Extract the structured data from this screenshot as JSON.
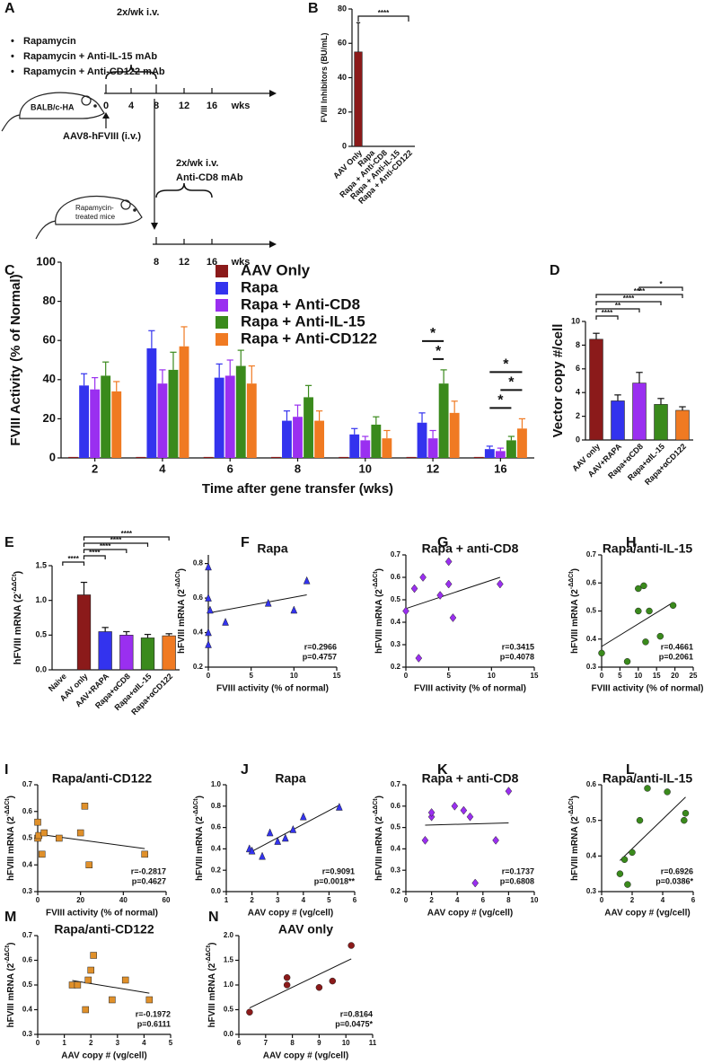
{
  "diagram": {
    "panel": "A",
    "schedule_top": "2x/wk i.v.",
    "treatments": [
      "Rapamycin",
      "Rapamycin + Anti-IL-15 mAb",
      "Rapamycin + Anti-CD122 mAb"
    ],
    "mouse_1": "BALB/c-HA",
    "timeline_1": [
      "0",
      "4",
      "8",
      "12",
      "16",
      "wks"
    ],
    "injection": "AAV8-hFVIII (i.v.)",
    "mouse_2": [
      "Rapamycin-",
      "treated mice"
    ],
    "schedule_bottom": [
      "2x/wk i.v.",
      "Anti-CD8 mAb"
    ],
    "timeline_2": [
      "8",
      "12",
      "16",
      "wks"
    ]
  },
  "chart_data": [
    {
      "panel": "B",
      "type": "bar",
      "y_label": "FVIII Inhibitors (BU/mL)",
      "categories": [
        "AAV Only",
        "Rapa",
        "Rapa + Anti-CD8",
        "Rapa + Anti-IL-15",
        "Rapa + Anti-CD122"
      ],
      "values": [
        55,
        0,
        0,
        0,
        0
      ],
      "errors": [
        17,
        0,
        0,
        0,
        0
      ],
      "colors": [
        "#8b1a1a",
        "#3333ee",
        "#9a2ff0",
        "#3a8a1c",
        "#f07a22"
      ],
      "ylim": [
        0,
        80
      ],
      "yticks": [
        0,
        20,
        40,
        60,
        80
      ],
      "comparisons": [
        {
          "between": [
            "AAV Only",
            "Rapa + Anti-CD122"
          ],
          "label": "****"
        }
      ]
    },
    {
      "panel": "C",
      "type": "grouped_bar",
      "y_label": "FVIII Activity (% of Normal)",
      "x_label": "Time after gene transfer (wks)",
      "categories": [
        "2",
        "4",
        "6",
        "8",
        "10",
        "12",
        "16"
      ],
      "ylim": [
        0,
        100
      ],
      "yticks": [
        0,
        20,
        40,
        60,
        80,
        100
      ],
      "series": [
        {
          "name": "AAV Only",
          "color": "#8b1a1a",
          "values": [
            0.5,
            0.5,
            0.5,
            0.5,
            0.5,
            0.5,
            0.5
          ],
          "errors": [
            0,
            0,
            0,
            0,
            0,
            0,
            0
          ]
        },
        {
          "name": "Rapa",
          "color": "#3333ee",
          "values": [
            37,
            56,
            41,
            19,
            12,
            18,
            4.5
          ],
          "errors": [
            6,
            9,
            7,
            5,
            3,
            5,
            1.5
          ]
        },
        {
          "name": "Rapa + Anti-CD8",
          "color": "#9a2ff0",
          "values": [
            35,
            38,
            42,
            21,
            9,
            10,
            3.5
          ],
          "errors": [
            6,
            7,
            8,
            6,
            2,
            4,
            1.5
          ]
        },
        {
          "name": "Rapa + Anti-IL-15",
          "color": "#3a8a1c",
          "values": [
            42,
            45,
            47,
            31,
            17,
            38,
            9
          ],
          "errors": [
            7,
            9,
            8,
            6,
            4,
            7,
            2
          ]
        },
        {
          "name": "Rapa + Anti-CD122",
          "color": "#f07a22",
          "values": [
            34,
            57,
            38,
            19,
            10,
            23,
            15
          ],
          "errors": [
            5,
            10,
            9,
            5,
            4,
            6,
            5
          ]
        }
      ],
      "comparisons": [
        {
          "category": "12",
          "between": [
            "Rapa + Anti-CD8",
            "Rapa + Anti-IL-15"
          ],
          "label": "*"
        },
        {
          "category": "12",
          "between": [
            "Rapa",
            "Rapa + Anti-IL-15"
          ],
          "label": "*"
        },
        {
          "category": "16",
          "between": [
            "Rapa",
            "Rapa + Anti-IL-15"
          ],
          "label": "*"
        },
        {
          "category": "16",
          "between": [
            "Rapa + Anti-CD8",
            "Rapa + Anti-CD122"
          ],
          "label": "*"
        },
        {
          "category": "16",
          "between": [
            "Rapa",
            "Rapa + Anti-CD122"
          ],
          "label": "*"
        }
      ]
    },
    {
      "panel": "D",
      "type": "bar",
      "y_label": "Vector copy #/cell",
      "categories": [
        "AAV only",
        "AAV+RAPA",
        "Rapa+αCD8",
        "Rapa+αIL-15",
        "Rapa+αCD122"
      ],
      "values": [
        8.5,
        3.3,
        4.8,
        3.0,
        2.5
      ],
      "errors": [
        0.5,
        0.5,
        0.9,
        0.5,
        0.3
      ],
      "colors": [
        "#8b1a1a",
        "#3333ee",
        "#9a2ff0",
        "#3a8a1c",
        "#f07a22"
      ],
      "ylim": [
        0,
        10
      ],
      "yticks": [
        0,
        2,
        4,
        6,
        8,
        10
      ],
      "comparisons": [
        {
          "between": [
            "AAV only",
            "AAV+RAPA"
          ],
          "label": "****"
        },
        {
          "between": [
            "AAV only",
            "Rapa+αCD8"
          ],
          "label": "**"
        },
        {
          "between": [
            "AAV only",
            "Rapa+αIL-15"
          ],
          "label": "****"
        },
        {
          "between": [
            "AAV only",
            "Rapa+αCD122"
          ],
          "label": "****"
        },
        {
          "between": [
            "Rapa+αCD8",
            "Rapa+αCD122"
          ],
          "label": "*"
        }
      ]
    },
    {
      "panel": "E",
      "type": "bar",
      "y_label": "hFVIII mRNA (2",
      "y_label_sup": "-ΔΔCt",
      "y_label_end": ")",
      "categories": [
        "Naive",
        "AAV only",
        "AAV+RAPA",
        "Rapa+αCD8",
        "Rapa+αIL-15",
        "Rapa+αCD122"
      ],
      "values": [
        0,
        1.08,
        0.55,
        0.5,
        0.46,
        0.49
      ],
      "errors": [
        0,
        0.18,
        0.06,
        0.05,
        0.05,
        0.03
      ],
      "colors": [
        "#888888",
        "#8b1a1a",
        "#3333ee",
        "#9a2ff0",
        "#3a8a1c",
        "#f07a22"
      ],
      "ylim": [
        0,
        1.5
      ],
      "yticks": [
        {
          "value": 0,
          "label": "0.0"
        },
        0.5,
        {
          "value": 1,
          "label": "1.0"
        },
        1.5
      ],
      "comparisons": [
        {
          "between": [
            "Naive",
            "AAV only"
          ],
          "label": "****"
        },
        {
          "between": [
            "AAV only",
            "AAV+RAPA"
          ],
          "label": "****"
        },
        {
          "between": [
            "AAV only",
            "Rapa+αCD8"
          ],
          "label": "****"
        },
        {
          "between": [
            "AAV only",
            "Rapa+αIL-15"
          ],
          "label": "****"
        },
        {
          "between": [
            "AAV only",
            "Rapa+αCD122"
          ],
          "label": "****"
        }
      ]
    },
    {
      "panel": "F",
      "type": "scatter",
      "title": "Rapa",
      "x_label": "FVIII activity (% of normal)",
      "y_label": "hFVIII mRNA (2",
      "y_label_sup": "-ΔΔCt",
      "y_label_end": ")",
      "marker": "triangle",
      "color": "#3333ee",
      "x": [
        0,
        0,
        0,
        0,
        0.2,
        2,
        7,
        10,
        11.5
      ],
      "y": [
        0.78,
        0.6,
        0.4,
        0.33,
        0.53,
        0.46,
        0.57,
        0.53,
        0.7
      ],
      "xlim": [
        0,
        15
      ],
      "xticks": [
        0,
        5,
        10,
        15
      ],
      "ylim": [
        0.2,
        0.85
      ],
      "yticks": [
        0.2,
        0.4,
        0.6,
        0.8
      ],
      "stats": [
        "r=0.2966",
        "p=0.4757"
      ]
    },
    {
      "panel": "G",
      "type": "scatter",
      "title": "Rapa + anti-CD8",
      "x_label": "FVIII activity (% of normal)",
      "y_label": "hFVIII mRNA (2",
      "y_label_sup": "-ΔΔCt",
      "y_label_end": ")",
      "marker": "diamond",
      "color": "#9a2ff0",
      "x": [
        0,
        1,
        1.5,
        2,
        4,
        5,
        5,
        5.5,
        11
      ],
      "y": [
        0.45,
        0.55,
        0.24,
        0.6,
        0.52,
        0.57,
        0.67,
        0.42,
        0.57
      ],
      "xlim": [
        0,
        15
      ],
      "xticks": [
        0,
        5,
        10,
        15
      ],
      "ylim": [
        0.2,
        0.7
      ],
      "yticks": [
        0.2,
        0.3,
        0.4,
        0.5,
        0.6,
        0.7
      ],
      "stats": [
        "r=0.3415",
        "p=0.4078"
      ]
    },
    {
      "panel": "H",
      "type": "scatter",
      "title": "Rapa/anti-IL-15",
      "x_label": "FVIII activity (% of normal)",
      "y_label": "hFVIII mRNA (2",
      "y_label_sup": "-ΔΔCt",
      "y_label_end": ")",
      "marker": "circle",
      "color": "#3a8a1c",
      "x": [
        0,
        7,
        10,
        11.5,
        12,
        13,
        16,
        19.5,
        10
      ],
      "y": [
        0.35,
        0.32,
        0.58,
        0.59,
        0.39,
        0.5,
        0.41,
        0.52,
        0.5
      ],
      "xlim": [
        0,
        25
      ],
      "xticks": [
        0,
        5,
        10,
        15,
        20,
        25
      ],
      "ylim": [
        0.3,
        0.7
      ],
      "yticks": [
        0.3,
        0.4,
        0.5,
        0.6,
        0.7
      ],
      "stats": [
        "r=0.4661",
        "p=0.2061"
      ]
    },
    {
      "panel": "I",
      "type": "scatter",
      "title": "Rapa/anti-CD122",
      "x_label": "FVIII activity (% of normal)",
      "y_label": "hFVIII mRNA (2",
      "y_label_sup": "-ΔΔCt",
      "y_label_end": ")",
      "marker": "square",
      "color": "#e0902a",
      "x": [
        0,
        0,
        0.5,
        2,
        3,
        10,
        20,
        22,
        24,
        50
      ],
      "y": [
        0.56,
        0.5,
        0.51,
        0.44,
        0.52,
        0.5,
        0.52,
        0.62,
        0.4,
        0.44
      ],
      "xlim": [
        0,
        60
      ],
      "xticks": [
        0,
        20,
        40,
        60
      ],
      "ylim": [
        0.3,
        0.7
      ],
      "yticks": [
        0.3,
        0.4,
        0.5,
        0.6,
        0.7
      ],
      "stats": [
        "r=-0.2817",
        "p=0.4627"
      ]
    },
    {
      "panel": "J",
      "type": "scatter",
      "title": "Rapa",
      "x_label": "AAV copy # (vg/cell)",
      "y_label": "hFVIII mRNA (2",
      "y_label_sup": "-ΔΔCt",
      "y_label_end": ")",
      "marker": "triangle",
      "color": "#3333ee",
      "x": [
        1.9,
        2,
        2.4,
        2.7,
        3,
        3.3,
        3.6,
        4,
        5.4
      ],
      "y": [
        0.4,
        0.38,
        0.33,
        0.55,
        0.47,
        0.5,
        0.58,
        0.7,
        0.79
      ],
      "xlim": [
        1,
        6
      ],
      "xticks": [
        1,
        2,
        3,
        4,
        5,
        6
      ],
      "ylim": [
        0,
        1
      ],
      "yticks": [
        {
          "value": 0,
          "label": "0.0"
        },
        0.2,
        0.4,
        0.6,
        0.8,
        {
          "value": 1,
          "label": "1.0"
        }
      ],
      "stats": [
        "r=0.9091",
        "p=0.0018**"
      ]
    },
    {
      "panel": "K",
      "type": "scatter",
      "title": "Rapa + anti-CD8",
      "x_label": "AAV copy # (vg/cell)",
      "y_label": "hFVIII mRNA (2",
      "y_label_sup": "-ΔΔCt",
      "y_label_end": ")",
      "marker": "diamond",
      "color": "#9a2ff0",
      "x": [
        1.5,
        2,
        2,
        3.8,
        4.5,
        5,
        5.4,
        7,
        8
      ],
      "y": [
        0.44,
        0.55,
        0.57,
        0.6,
        0.58,
        0.55,
        0.24,
        0.44,
        0.67
      ],
      "xlim": [
        0,
        10
      ],
      "xticks": [
        0,
        2,
        4,
        6,
        8,
        10
      ],
      "ylim": [
        0.2,
        0.7
      ],
      "yticks": [
        0.2,
        0.3,
        0.4,
        0.5,
        0.6,
        0.7
      ],
      "stats": [
        "r=0.1737",
        "p=0.6808"
      ]
    },
    {
      "panel": "L",
      "type": "scatter",
      "title": "Rapa/anti-IL-15",
      "x_label": "AAV copy # (vg/cell)",
      "y_label": "hFVIII mRNA (2",
      "y_label_sup": "-ΔΔCt",
      "y_label_end": ")",
      "marker": "circle",
      "color": "#3a8a1c",
      "x": [
        1.2,
        1.5,
        1.7,
        2,
        2.5,
        3,
        4.3,
        5.4,
        5.5
      ],
      "y": [
        0.35,
        0.39,
        0.32,
        0.41,
        0.5,
        0.59,
        0.58,
        0.5,
        0.52
      ],
      "xlim": [
        0,
        6
      ],
      "xticks": [
        0,
        2,
        4,
        6
      ],
      "ylim": [
        0.3,
        0.6
      ],
      "yticks": [
        0.3,
        0.4,
        0.5,
        0.6
      ],
      "stats": [
        "r=0.6926",
        "p=0.0386*"
      ]
    },
    {
      "panel": "M",
      "type": "scatter",
      "title": "Rapa/anti-CD122",
      "x_label": "AAV copy # (vg/cell)",
      "y_label": "hFVIII mRNA (2",
      "y_label_sup": "-ΔΔCt",
      "y_label_end": ")",
      "marker": "square",
      "color": "#e0902a",
      "x": [
        1.3,
        1.5,
        1.8,
        1.9,
        2,
        2.1,
        2.8,
        3.3,
        4.2
      ],
      "y": [
        0.5,
        0.5,
        0.4,
        0.52,
        0.56,
        0.62,
        0.44,
        0.52,
        0.44
      ],
      "xlim": [
        0,
        5
      ],
      "xticks": [
        0,
        1,
        2,
        3,
        4,
        5
      ],
      "ylim": [
        0.3,
        0.7
      ],
      "yticks": [
        0.3,
        0.4,
        0.5,
        0.6,
        0.7
      ],
      "stats": [
        "r=-0.1972",
        "p=0.6111"
      ]
    },
    {
      "panel": "N",
      "type": "scatter",
      "title": "AAV only",
      "x_label": "AAV copy # (vg/cell)",
      "y_label": "hFVIII mRNA (2",
      "y_label_sup": "-ΔΔCt",
      "y_label_end": ")",
      "marker": "circle",
      "color": "#8b1a1a",
      "x": [
        6.4,
        7.8,
        7.8,
        9,
        9.5,
        10.2
      ],
      "y": [
        0.45,
        1.0,
        1.15,
        0.95,
        1.08,
        1.8
      ],
      "xlim": [
        6,
        11
      ],
      "xticks": [
        6,
        7,
        8,
        9,
        10,
        11
      ],
      "ylim": [
        0,
        2
      ],
      "yticks": [
        {
          "value": 0,
          "label": "0.0"
        },
        0.5,
        {
          "value": 1,
          "label": "1.0"
        },
        1.5,
        {
          "value": 2,
          "label": "2.0"
        }
      ],
      "stats": [
        "r=0.8164",
        "p=0.0475*"
      ]
    }
  ]
}
